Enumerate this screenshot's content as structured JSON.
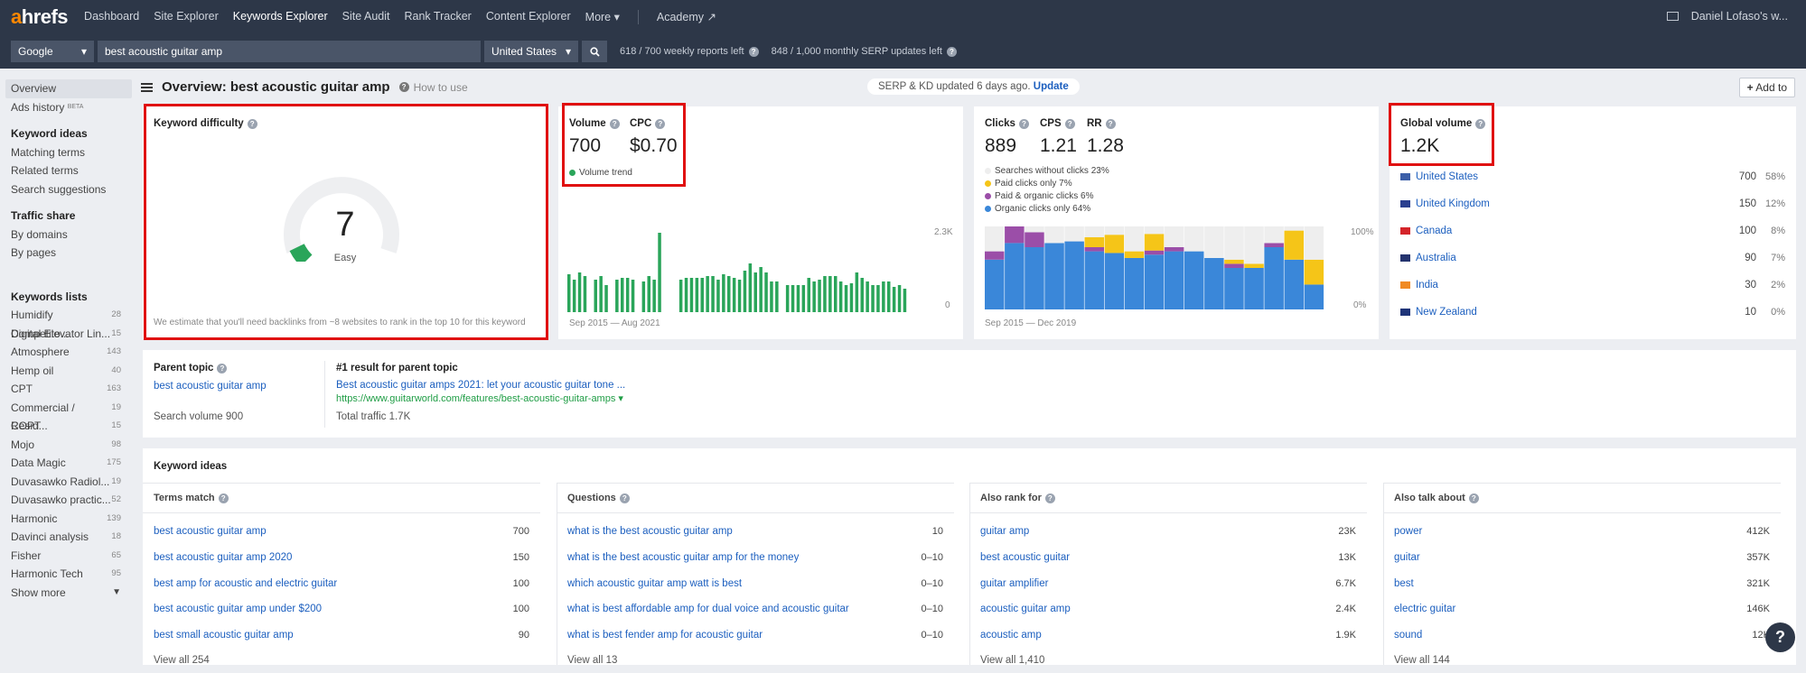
{
  "nav": {
    "items": [
      "Dashboard",
      "Site Explorer",
      "Keywords Explorer",
      "Site Audit",
      "Rank Tracker",
      "Content Explorer",
      "More ▾"
    ],
    "academy": "Academy ↗",
    "user": "Daniel Lofaso's w..."
  },
  "search": {
    "engine": "Google",
    "keyword": "best acoustic guitar amp",
    "country": "United States",
    "quota1": "618 / 700 weekly reports left",
    "quota2": "848 / 1,000 monthly SERP updates left"
  },
  "sidebar": {
    "overview": "Overview",
    "ads_history": "Ads history",
    "beta": "BETA",
    "keyword_ideas_head": "Keyword ideas",
    "ideas": [
      "Matching terms",
      "Related terms",
      "Search suggestions"
    ],
    "traffic_head": "Traffic share",
    "traffic": [
      "By domains",
      "By pages"
    ],
    "lists_head": "Keywords lists",
    "lists": [
      {
        "name": "Humidify Competito...",
        "count": "28"
      },
      {
        "name": "Digital Elevator Lin...",
        "count": "15"
      },
      {
        "name": "Atmosphere",
        "count": "143"
      },
      {
        "name": "Hemp oil",
        "count": "40"
      },
      {
        "name": "CPT",
        "count": "163"
      },
      {
        "name": "Commercial / Resid...",
        "count": "19"
      },
      {
        "name": "COPT",
        "count": "15"
      },
      {
        "name": "Mojo",
        "count": "98"
      },
      {
        "name": "Data Magic",
        "count": "175"
      },
      {
        "name": "Duvasawko Radiol...",
        "count": "19"
      },
      {
        "name": "Duvasawko practic...",
        "count": "52"
      },
      {
        "name": "Harmonic",
        "count": "139"
      },
      {
        "name": "Davinci analysis",
        "count": "18"
      },
      {
        "name": "Fisher",
        "count": "65"
      },
      {
        "name": "Harmonic Tech",
        "count": "95"
      }
    ],
    "show_more": "Show more"
  },
  "header": {
    "title": "Overview: best acoustic guitar amp",
    "how_to": "How to use",
    "updated_text": "SERP & KD updated 6 days ago.",
    "update_link": "Update",
    "add_to": "Add to"
  },
  "kd": {
    "label": "Keyword difficulty",
    "value": "7",
    "level": "Easy",
    "score_fraction": 0.07,
    "note": "We estimate that you'll need backlinks from ~8 websites to rank in the top 10 for this keyword"
  },
  "volume": {
    "label": "Volume",
    "value": "700",
    "cpc_label": "CPC",
    "cpc_value": "$0.70",
    "trend_label": "Volume trend",
    "y_max": "2.3K",
    "y_min": "0",
    "range": "Sep 2015 — Aug 2021"
  },
  "clicks": {
    "label": "Clicks",
    "value": "889",
    "cps_label": "CPS",
    "cps_value": "1.21",
    "rr_label": "RR",
    "rr_value": "1.28",
    "legend": [
      {
        "label": "Searches without clicks 23%",
        "color": "#eeeeee"
      },
      {
        "label": "Paid clicks only 7%",
        "color": "#f5c518"
      },
      {
        "label": "Paid & organic clicks 6%",
        "color": "#9b4ea8"
      },
      {
        "label": "Organic clicks only 64%",
        "color": "#3a87d9"
      }
    ],
    "y_max": "100%",
    "y_min": "0%",
    "range": "Sep 2015 — Dec 2019"
  },
  "global": {
    "label": "Global volume",
    "value": "1.2K",
    "countries": [
      {
        "name": "United States",
        "volume": "700",
        "pct": "58%"
      },
      {
        "name": "United Kingdom",
        "volume": "150",
        "pct": "12%"
      },
      {
        "name": "Canada",
        "volume": "100",
        "pct": "8%"
      },
      {
        "name": "Australia",
        "volume": "90",
        "pct": "7%"
      },
      {
        "name": "India",
        "volume": "30",
        "pct": "2%"
      },
      {
        "name": "New Zealand",
        "volume": "10",
        "pct": "0%"
      }
    ]
  },
  "parent": {
    "label": "Parent topic",
    "topic": "best acoustic guitar amp",
    "search_volume": "Search volume 900",
    "result_label": "#1 result for parent topic",
    "result_title": "Best acoustic guitar amps 2021: let your acoustic guitar tone ...",
    "result_url": "https://www.guitarworld.com/features/best-acoustic-guitar-amps ▾",
    "total_traffic": "Total traffic 1.7K"
  },
  "ideas": {
    "title": "Keyword ideas",
    "columns": [
      {
        "head": "Terms match",
        "rows": [
          {
            "k": "best acoustic guitar amp",
            "v": "700"
          },
          {
            "k": "best acoustic guitar amp 2020",
            "v": "150"
          },
          {
            "k": "best amp for acoustic and electric guitar",
            "v": "100"
          },
          {
            "k": "best acoustic guitar amp under $200",
            "v": "100"
          },
          {
            "k": "best small acoustic guitar amp",
            "v": "90"
          }
        ],
        "view_all": "View all 254"
      },
      {
        "head": "Questions",
        "rows": [
          {
            "k": "what is the best acoustic guitar amp",
            "v": "10"
          },
          {
            "k": "what is the best acoustic guitar amp for the money",
            "v": "0–10"
          },
          {
            "k": "which acoustic guitar amp watt is best",
            "v": "0–10"
          },
          {
            "k": "what is best affordable amp for dual voice and acoustic guitar",
            "v": "0–10"
          },
          {
            "k": "what is best fender amp for acoustic guitar",
            "v": "0–10"
          }
        ],
        "view_all": "View all 13"
      },
      {
        "head": "Also rank for",
        "rows": [
          {
            "k": "guitar amp",
            "v": "23K"
          },
          {
            "k": "best acoustic guitar",
            "v": "13K"
          },
          {
            "k": "guitar amplifier",
            "v": "6.7K"
          },
          {
            "k": "acoustic guitar amp",
            "v": "2.4K"
          },
          {
            "k": "acoustic amp",
            "v": "1.9K"
          }
        ],
        "view_all": "View all 1,410"
      },
      {
        "head": "Also talk about",
        "rows": [
          {
            "k": "power",
            "v": "412K"
          },
          {
            "k": "guitar",
            "v": "357K"
          },
          {
            "k": "best",
            "v": "321K"
          },
          {
            "k": "electric guitar",
            "v": "146K"
          },
          {
            "k": "sound",
            "v": "12K"
          }
        ],
        "view_all": "View all 144"
      }
    ]
  },
  "help_button": "?",
  "colors": {
    "nav_bg": "#2d3748",
    "link": "#1c5fbf",
    "volume_bar": "#2aa55a",
    "highlight_box": "#e01010"
  }
}
